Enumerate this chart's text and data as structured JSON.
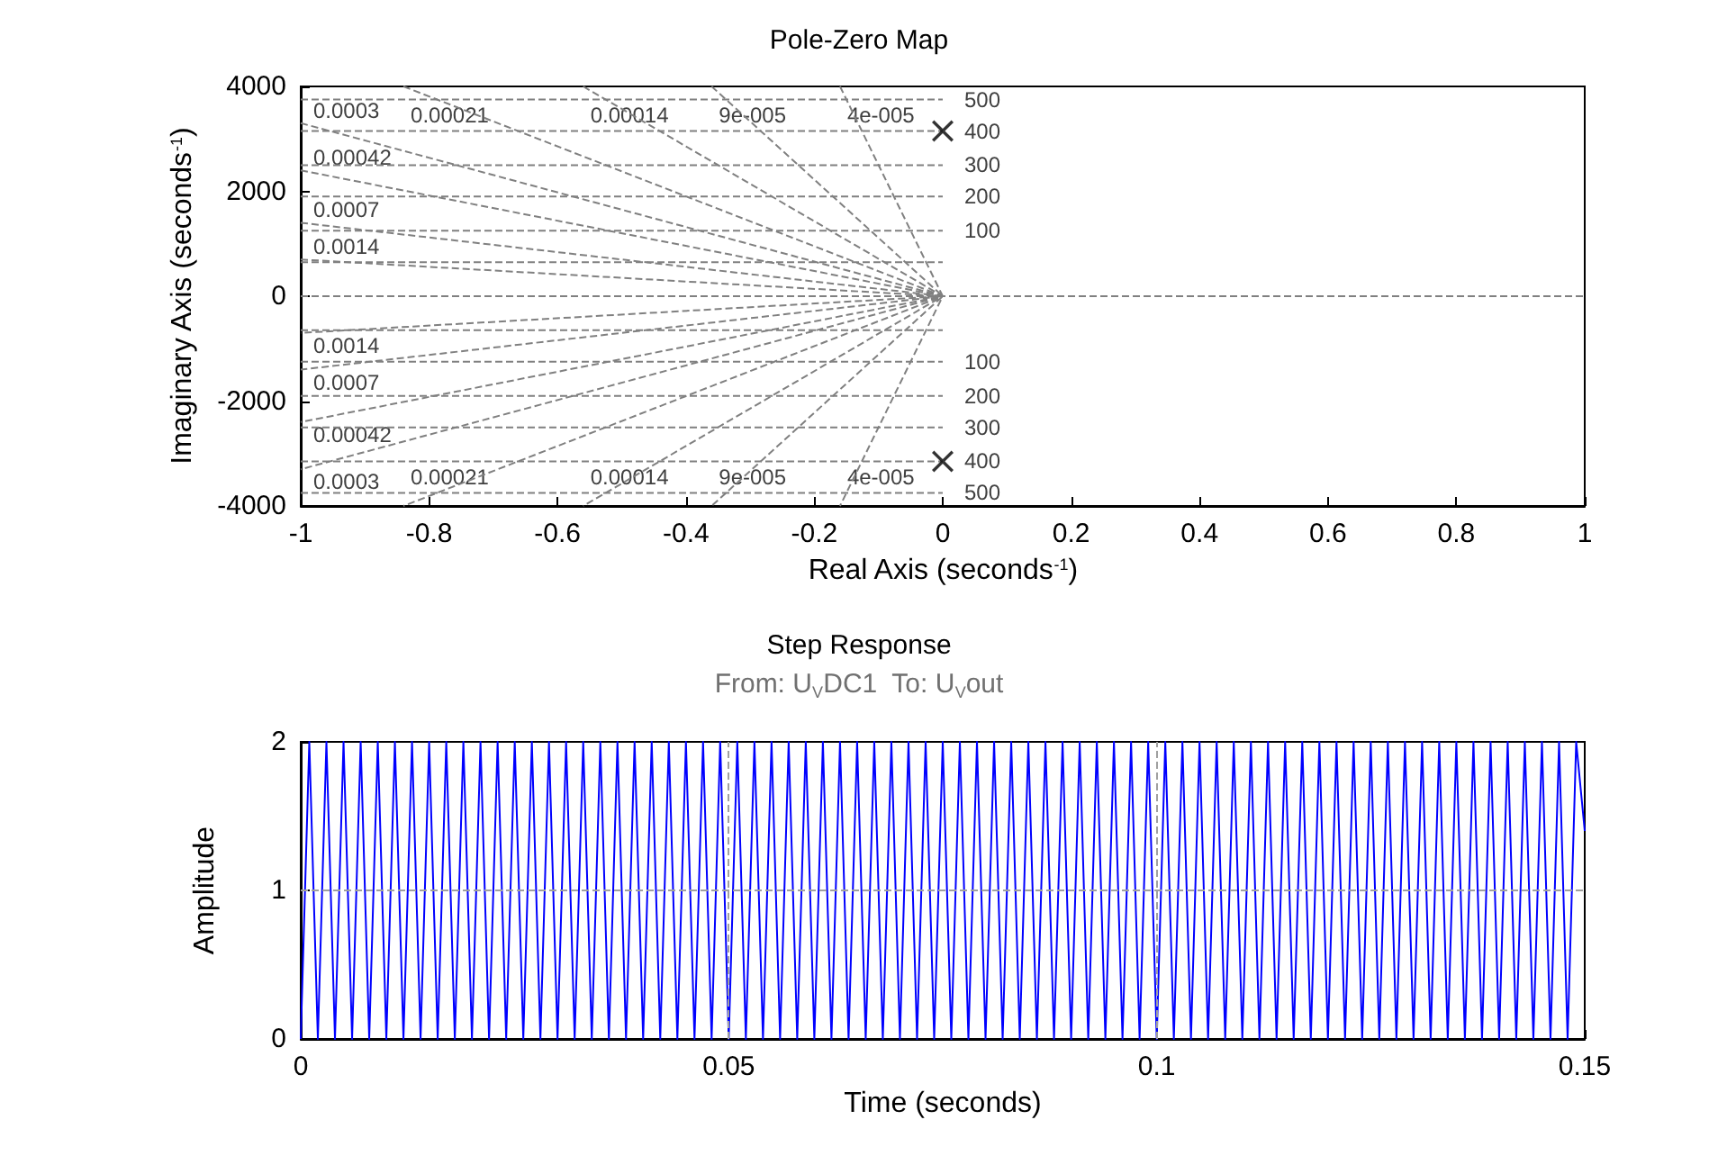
{
  "chart_data": [
    {
      "type": "scatter",
      "title": "Pole-Zero Map",
      "xlabel": "Real Axis (seconds$^{-1}$)",
      "ylabel": "Imaginary Axis (seconds$^{-1}$)",
      "xlim": [
        -1,
        1
      ],
      "xticks": [
        -1,
        -0.8,
        -0.6,
        -0.4,
        -0.2,
        0,
        0.2,
        0.4,
        0.6,
        0.8,
        1
      ],
      "ylim": [
        -4000,
        4000
      ],
      "yticks": [
        -4000,
        -2000,
        0,
        2000,
        4000
      ],
      "grid": false,
      "series": [
        {
          "type": "line",
          "line_style": "dashed",
          "marker": "none",
          "color": "#808080",
          "x": [
            -0.84,
            0,
            -0.84
          ],
          "values": [
            4000,
            0,
            -4000
          ]
        },
        {
          "type": "line",
          "line_style": "dashed",
          "marker": "none",
          "color": "#808080",
          "x": [
            -1,
            0,
            -1
          ],
          "values": [
            3300,
            0,
            -3300
          ]
        },
        {
          "type": "line",
          "line_style": "dashed",
          "marker": "none",
          "color": "#808080",
          "x": [
            -1,
            0,
            -1
          ],
          "values": [
            2400,
            0,
            -2400
          ]
        },
        {
          "type": "line",
          "line_style": "dashed",
          "marker": "none",
          "color": "#808080",
          "x": [
            -1,
            0,
            -1
          ],
          "values": [
            1400,
            0,
            -1400
          ]
        },
        {
          "type": "line",
          "line_style": "dashed",
          "marker": "none",
          "color": "#808080",
          "x": [
            -1,
            0,
            -1
          ],
          "values": [
            700,
            0,
            -700
          ]
        },
        {
          "type": "line",
          "line_style": "dashed",
          "marker": "none",
          "color": "#808080",
          "x": [
            -0.56,
            0,
            -0.56
          ],
          "values": [
            4000,
            0,
            -4000
          ]
        },
        {
          "type": "line",
          "line_style": "dashed",
          "marker": "none",
          "color": "#808080",
          "x": [
            -0.36,
            0,
            -0.36
          ],
          "values": [
            4000,
            0,
            -4000
          ]
        },
        {
          "type": "line",
          "line_style": "dashed",
          "marker": "none",
          "color": "#808080",
          "x": [
            -0.16,
            0,
            -0.16
          ],
          "values": [
            4000,
            0,
            -4000
          ]
        },
        {
          "type": "line",
          "line_style": "dashed",
          "marker": "none",
          "color": "#808080",
          "x": [
            -1,
            0
          ],
          "values": [
            650,
            650
          ]
        },
        {
          "type": "line",
          "line_style": "dashed",
          "marker": "none",
          "color": "#808080",
          "x": [
            -1,
            0
          ],
          "values": [
            -650,
            -650
          ]
        },
        {
          "type": "line",
          "line_style": "dashed",
          "marker": "none",
          "color": "#808080",
          "x": [
            -1,
            0
          ],
          "values": [
            1250,
            1250
          ]
        },
        {
          "type": "line",
          "line_style": "dashed",
          "marker": "none",
          "color": "#808080",
          "x": [
            -1,
            0
          ],
          "values": [
            -1250,
            -1250
          ]
        },
        {
          "type": "line",
          "line_style": "dashed",
          "marker": "none",
          "color": "#808080",
          "x": [
            -1,
            0
          ],
          "values": [
            1900,
            1900
          ]
        },
        {
          "type": "line",
          "line_style": "dashed",
          "marker": "none",
          "color": "#808080",
          "x": [
            -1,
            0
          ],
          "values": [
            -1900,
            -1900
          ]
        },
        {
          "type": "line",
          "line_style": "dashed",
          "marker": "none",
          "color": "#808080",
          "x": [
            -1,
            0
          ],
          "values": [
            2500,
            2500
          ]
        },
        {
          "type": "line",
          "line_style": "dashed",
          "marker": "none",
          "color": "#808080",
          "x": [
            -1,
            0
          ],
          "values": [
            -2500,
            -2500
          ]
        },
        {
          "type": "line",
          "line_style": "dashed",
          "marker": "none",
          "color": "#808080",
          "x": [
            -1,
            0
          ],
          "values": [
            3150,
            3150
          ]
        },
        {
          "type": "line",
          "line_style": "dashed",
          "marker": "none",
          "color": "#808080",
          "x": [
            -1,
            0
          ],
          "values": [
            -3150,
            -3150
          ]
        },
        {
          "type": "line",
          "line_style": "dashed",
          "marker": "none",
          "color": "#808080",
          "x": [
            -1,
            0
          ],
          "values": [
            3750,
            3750
          ]
        },
        {
          "type": "line",
          "line_style": "dashed",
          "marker": "none",
          "color": "#808080",
          "x": [
            -1,
            0
          ],
          "values": [
            -3750,
            -3750
          ]
        },
        {
          "type": "scatter",
          "marker": "cross",
          "color": "#000000",
          "x": [
            0,
            0
          ],
          "values": [
            3150,
            -3150
          ]
        }
      ],
      "ref_lines": [
        {
          "axis": "y",
          "value": 0,
          "color": "#808080",
          "line_style": "dashed"
        }
      ],
      "annotations": [
        {
          "text": "0.00021",
          "x": -0.84,
          "y": 4000
        },
        {
          "text": "0.00014",
          "x": -0.56,
          "y": 4000
        },
        {
          "text": "9e-005",
          "x": -0.36,
          "y": 4000
        },
        {
          "text": "4e-005",
          "x": -0.16,
          "y": 4000
        },
        {
          "text": "0.0003",
          "x": -1,
          "y": 3300
        },
        {
          "text": "0.00042",
          "x": -1,
          "y": 2400
        },
        {
          "text": "0.0007",
          "x": -1,
          "y": 1400
        },
        {
          "text": "0.0014",
          "x": -1,
          "y": 700
        },
        {
          "text": "0.0014",
          "x": -1,
          "y": -700
        },
        {
          "text": "0.0007",
          "x": -1,
          "y": -1400
        },
        {
          "text": "0.00042",
          "x": -1,
          "y": -2400
        },
        {
          "text": "0.0003",
          "x": -1,
          "y": -3300
        },
        {
          "text": "0.00021",
          "x": -0.84,
          "y": -4000
        },
        {
          "text": "0.00014",
          "x": -0.56,
          "y": -4000
        },
        {
          "text": "9e-005",
          "x": -0.36,
          "y": -4000
        },
        {
          "text": "4e-005",
          "x": -0.16,
          "y": -4000
        },
        {
          "text": "500",
          "x": 0,
          "y": 3750
        },
        {
          "text": "400",
          "x": 0,
          "y": 3150
        },
        {
          "text": "300",
          "x": 0,
          "y": 2500
        },
        {
          "text": "200",
          "x": 0,
          "y": 1900
        },
        {
          "text": "100",
          "x": 0,
          "y": 1250
        },
        {
          "text": "100",
          "x": 0,
          "y": -1250
        },
        {
          "text": "200",
          "x": 0,
          "y": -1900
        },
        {
          "text": "300",
          "x": 0,
          "y": -2500
        },
        {
          "text": "400",
          "x": 0,
          "y": -3150
        },
        {
          "text": "500",
          "x": 0,
          "y": -3750
        }
      ]
    },
    {
      "type": "line",
      "title": "Step Response",
      "subtitle": "From: U$_{V}$DC1  To: U$_{V}$out",
      "xlabel": "Time (seconds)",
      "ylabel": "Amplitude",
      "xlim": [
        0,
        0.15
      ],
      "xticks": [
        0,
        0.05,
        0.1,
        0.15
      ],
      "ylim": [
        0,
        2
      ],
      "yticks": [
        0,
        1,
        2
      ],
      "grid": false,
      "ref_lines": [
        {
          "axis": "y",
          "value": 1,
          "color": "#a0a0a0",
          "line_style": "dashed"
        },
        {
          "axis": "x",
          "value": 0.05,
          "color": "#a0a0a0",
          "line_style": "dashed"
        },
        {
          "axis": "x",
          "value": 0.1,
          "color": "#a0a0a0",
          "line_style": "dashed"
        }
      ],
      "series": [
        {
          "color": "#0000ff",
          "line_style": "solid",
          "marker": "none",
          "x": [
            0,
            0.001,
            0.002,
            0.003,
            0.004,
            0.005,
            0.006,
            0.007,
            0.008,
            0.009,
            0.01,
            0.011,
            0.012,
            0.013,
            0.014,
            0.015,
            0.016,
            0.017,
            0.018,
            0.019,
            0.02,
            0.021,
            0.022,
            0.023,
            0.024,
            0.025,
            0.026,
            0.027,
            0.028,
            0.029,
            0.03,
            0.031,
            0.032,
            0.033,
            0.034,
            0.035,
            0.036,
            0.037,
            0.038,
            0.039,
            0.04,
            0.041,
            0.042,
            0.043,
            0.044,
            0.045,
            0.046,
            0.047,
            0.048,
            0.049,
            0.05,
            0.051,
            0.052,
            0.053,
            0.054,
            0.055,
            0.056,
            0.057,
            0.058,
            0.059,
            0.06,
            0.061,
            0.062,
            0.063,
            0.064,
            0.065,
            0.066,
            0.067,
            0.068,
            0.069,
            0.07,
            0.071,
            0.072,
            0.073,
            0.074,
            0.075,
            0.076,
            0.077,
            0.078,
            0.079,
            0.08,
            0.081,
            0.082,
            0.083,
            0.084,
            0.085,
            0.086,
            0.087,
            0.088,
            0.089,
            0.09,
            0.091,
            0.092,
            0.093,
            0.094,
            0.095,
            0.096,
            0.097,
            0.098,
            0.099,
            0.1,
            0.101,
            0.102,
            0.103,
            0.104,
            0.105,
            0.106,
            0.107,
            0.108,
            0.109,
            0.11,
            0.111,
            0.112,
            0.113,
            0.114,
            0.115,
            0.116,
            0.117,
            0.118,
            0.119,
            0.12,
            0.121,
            0.122,
            0.123,
            0.124,
            0.125,
            0.126,
            0.127,
            0.128,
            0.129,
            0.13,
            0.131,
            0.132,
            0.133,
            0.134,
            0.135,
            0.136,
            0.137,
            0.138,
            0.139,
            0.14,
            0.141,
            0.142,
            0.143,
            0.144,
            0.145,
            0.146,
            0.147,
            0.148,
            0.149,
            0.15
          ],
          "values": [
            0,
            2,
            0,
            2,
            0,
            2,
            0,
            2,
            0,
            2,
            0,
            2,
            0,
            2,
            0,
            2,
            0,
            2,
            0,
            2,
            0,
            2,
            0,
            2,
            0,
            2,
            0,
            2,
            0,
            2,
            0,
            2,
            0,
            2,
            0,
            2,
            0,
            2,
            0,
            2,
            0,
            2,
            0,
            2,
            0,
            2,
            0,
            2,
            0,
            2,
            0,
            2,
            0,
            2,
            0,
            2,
            0,
            2,
            0,
            2,
            0,
            2,
            0,
            2,
            0,
            2,
            0,
            2,
            0,
            2,
            0,
            2,
            0,
            2,
            0,
            2,
            0,
            2,
            0,
            2,
            0,
            2,
            0,
            2,
            0,
            2,
            0,
            2,
            0,
            2,
            0,
            2,
            0,
            2,
            0,
            2,
            0,
            2,
            0,
            2,
            0,
            2,
            0,
            2,
            0,
            2,
            0,
            2,
            0,
            2,
            0,
            2,
            0,
            2,
            0,
            2,
            0,
            2,
            0,
            2,
            0,
            2,
            0,
            2,
            0,
            2,
            0,
            2,
            0,
            2,
            0,
            2,
            0,
            2,
            0,
            2,
            0,
            2,
            0,
            2,
            0,
            2,
            0,
            2,
            0,
            2,
            0,
            2,
            0,
            2,
            1.4
          ]
        }
      ]
    }
  ]
}
